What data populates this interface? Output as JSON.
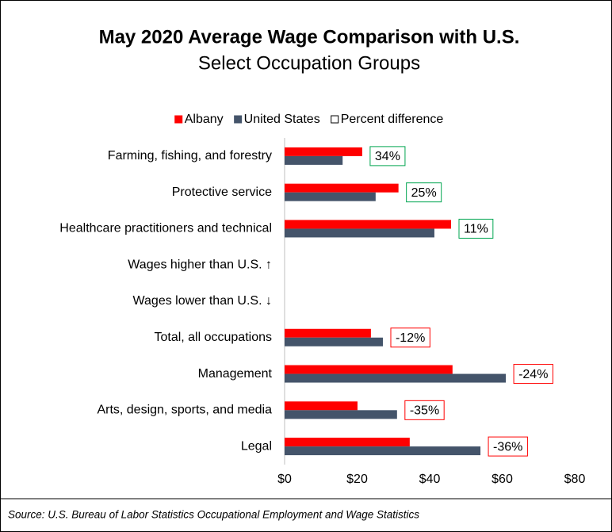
{
  "chart_data": {
    "type": "hbar",
    "title": "May 2020 Average Wage Comparison with U.S.",
    "subtitle": "Select Occupation Groups",
    "source": "Source: U.S. Bureau of Labor Statistics Occupational Employment and Wage Statistics",
    "categories": [
      "Farming, fishing, and forestry",
      "Protective service",
      "Healthcare practitioners and technical",
      "Wages higher than U.S. ↑",
      "Wages lower than U.S. ↓",
      "Total, all occupations",
      "Management",
      "Arts, design, sports, and media",
      "Legal"
    ],
    "series": [
      {
        "name": "Albany",
        "color": "#ff0000",
        "values": [
          21.4,
          31.4,
          45.9,
          null,
          null,
          23.8,
          46.3,
          20.1,
          34.5
        ]
      },
      {
        "name": "United States",
        "color": "#44546a",
        "values": [
          16.0,
          25.1,
          41.3,
          null,
          null,
          27.1,
          61.0,
          31.0,
          54.0
        ]
      },
      {
        "name": "Percent difference",
        "color": "#ffffff",
        "values": [
          34,
          25,
          11,
          null,
          null,
          -12,
          -24,
          -35,
          -36
        ],
        "value_labels": [
          "34%",
          "25%",
          "11%",
          null,
          null,
          "-12%",
          "-24%",
          "-35%",
          "-36%"
        ],
        "positive_color": "#00a550",
        "negative_color": "#ff0000"
      }
    ],
    "xlim": [
      0,
      80
    ],
    "xticks": [
      {
        "value": 0,
        "label": "$0"
      },
      {
        "value": 20,
        "label": "$20"
      },
      {
        "value": 40,
        "label": "$40"
      },
      {
        "value": 60,
        "label": "$60"
      },
      {
        "value": 80,
        "label": "$80"
      }
    ],
    "legend": "top",
    "grid": false
  }
}
